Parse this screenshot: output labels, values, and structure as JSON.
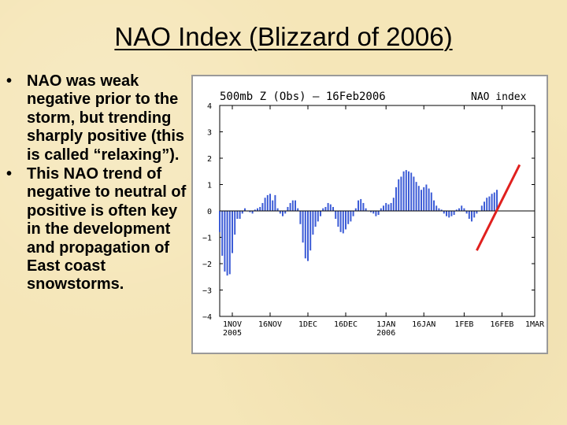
{
  "slide": {
    "title": "NAO Index (Blizzard of 2006)",
    "bullet_char": "•",
    "bullets": [
      "NAO was weak negative prior to the storm, but trending sharply positive (this is called “relaxing”).",
      "This NAO trend of negative to neutral of positive is often key in the development and propagation of East coast snowstorms."
    ]
  },
  "colors": {
    "background": "#f5e6b8",
    "bars": "#3b5bd6",
    "trend_line": "#e0201e"
  },
  "chart_data": {
    "type": "bar",
    "title": "500mb Z (Obs) – 16Feb2006",
    "legend": "NAO index",
    "xlabel": "",
    "ylabel": "",
    "ylim": [
      -4,
      4
    ],
    "yticks": [
      "4",
      "3",
      "2",
      "1",
      "0",
      "−1",
      "−2",
      "−3",
      "−4"
    ],
    "x_range": [
      "2005-10-27",
      "2006-03-01"
    ],
    "x_ticks": [
      {
        "label": "1NOV",
        "sub": "2005",
        "date": "2005-11-01"
      },
      {
        "label": "16NOV",
        "sub": "",
        "date": "2005-11-16"
      },
      {
        "label": "1DEC",
        "sub": "",
        "date": "2005-12-01"
      },
      {
        "label": "16DEC",
        "sub": "",
        "date": "2005-12-16"
      },
      {
        "label": "1JAN",
        "sub": "2006",
        "date": "2006-01-01"
      },
      {
        "label": "16JAN",
        "sub": "",
        "date": "2006-01-16"
      },
      {
        "label": "1FEB",
        "sub": "",
        "date": "2006-02-01"
      },
      {
        "label": "16FEB",
        "sub": "",
        "date": "2006-02-16"
      },
      {
        "label": "1MAR",
        "sub": "",
        "date": "2006-03-01"
      }
    ],
    "series": [
      {
        "start_date": "2005-10-27",
        "values": [
          -0.8,
          -1.7,
          -2.3,
          -2.45,
          -2.4,
          -1.6,
          -0.9,
          -0.3,
          -0.3,
          -0.1,
          0.1,
          0.0,
          -0.05,
          -0.1,
          0.05,
          0.1,
          0.15,
          0.3,
          0.5,
          0.6,
          0.65,
          0.4,
          0.6,
          0.1,
          -0.1,
          -0.2,
          -0.1,
          0.15,
          0.3,
          0.4,
          0.4,
          0.1,
          -0.5,
          -1.2,
          -1.8,
          -1.9,
          -1.5,
          -0.9,
          -0.6,
          -0.4,
          -0.2,
          0.1,
          0.15,
          0.3,
          0.25,
          0.15,
          -0.3,
          -0.6,
          -0.8,
          -0.85,
          -0.7,
          -0.5,
          -0.4,
          -0.2,
          0.1,
          0.4,
          0.45,
          0.3,
          0.1,
          0.0,
          -0.05,
          -0.1,
          -0.2,
          -0.15,
          0.1,
          0.2,
          0.3,
          0.25,
          0.3,
          0.5,
          0.9,
          1.2,
          1.3,
          1.5,
          1.55,
          1.5,
          1.45,
          1.3,
          1.1,
          0.95,
          0.8,
          0.9,
          1.0,
          0.85,
          0.7,
          0.4,
          0.2,
          0.1,
          0.05,
          -0.1,
          -0.2,
          -0.25,
          -0.2,
          -0.15,
          0.05,
          0.1,
          0.2,
          0.1,
          -0.1,
          -0.3,
          -0.4,
          -0.25,
          -0.1,
          0.0,
          0.2,
          0.35,
          0.5,
          0.55,
          0.65,
          0.7,
          0.8
        ]
      }
    ],
    "trend_annotation": {
      "from": [
        "2006-02-06",
        -1.5
      ],
      "to": [
        "2006-02-23",
        1.75
      ],
      "color": "#e0201e"
    }
  }
}
